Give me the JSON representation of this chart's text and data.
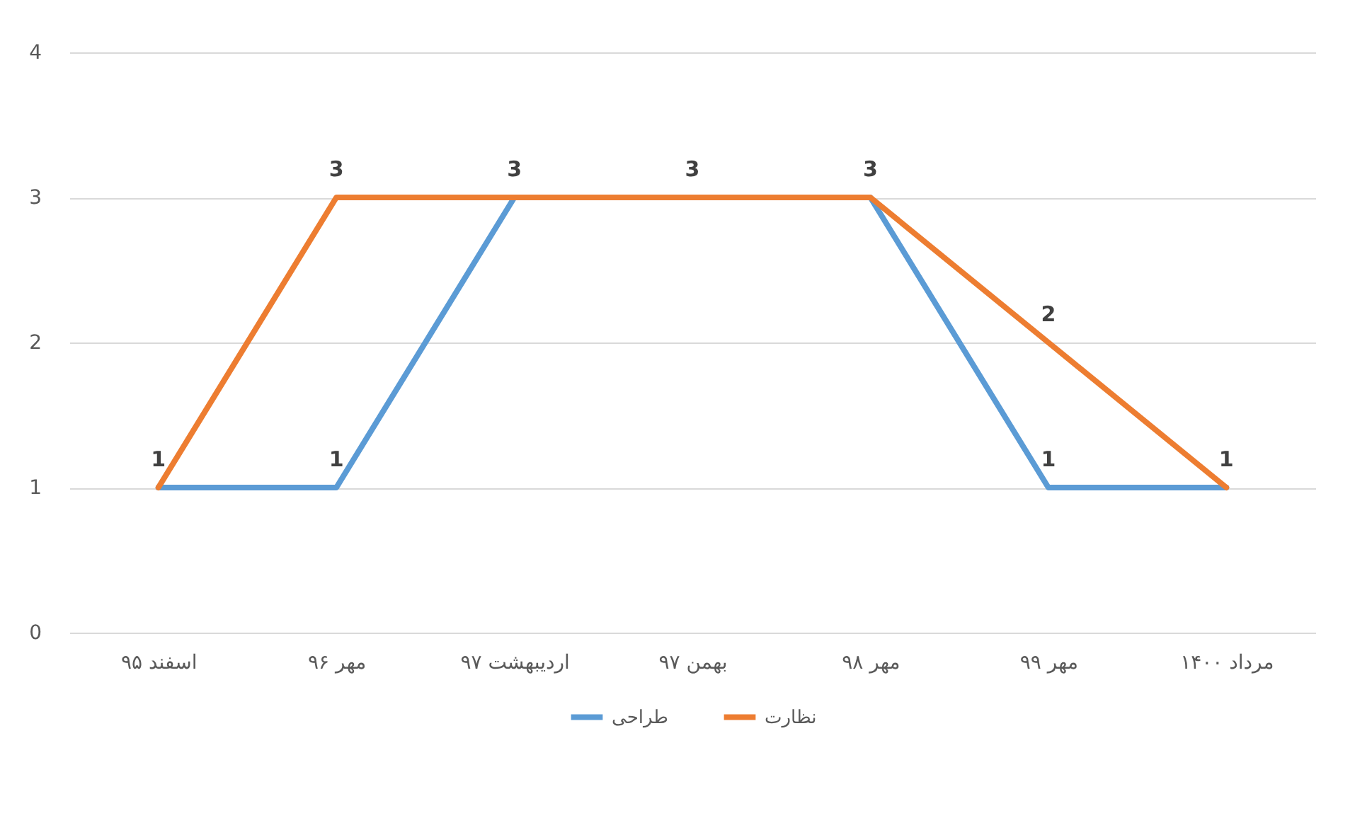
{
  "chart_data": {
    "type": "line",
    "categories": [
      "اسفند ۹۵",
      "مهر ۹۶",
      "اردیبهشت ۹۷",
      "بهمن ۹۷",
      "مهر ۹۸",
      "مهر ۹۹",
      "مرداد ۱۴۰۰"
    ],
    "series": [
      {
        "name": "طراحی",
        "color": "#5b9bd5",
        "values": [
          1,
          1,
          3,
          3,
          3,
          1,
          1
        ],
        "value_labels": [
          null,
          "1",
          null,
          null,
          null,
          "1",
          null
        ]
      },
      {
        "name": "نظارت",
        "color": "#ed7d31",
        "values": [
          1,
          3,
          3,
          3,
          3,
          2,
          1
        ],
        "value_labels": [
          "1",
          "3",
          "3",
          "3",
          "3",
          "2",
          "1"
        ]
      }
    ],
    "ylim": [
      0,
      4
    ],
    "yticks": [
      0,
      1,
      2,
      3,
      4
    ],
    "grid": "y",
    "legend": "bottom",
    "marker": "none",
    "line_style": "solid"
  }
}
